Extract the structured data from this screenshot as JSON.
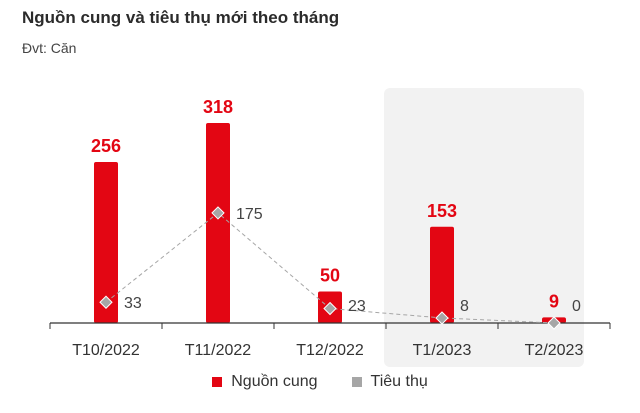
{
  "chart_data": {
    "type": "bar",
    "title": "Nguồn cung và tiêu thụ mới theo tháng",
    "subtitle": "Đvt: Căn",
    "categories": [
      "T10/2022",
      "T11/2022",
      "T12/2022",
      "T1/2023",
      "T2/2023"
    ],
    "series": [
      {
        "name": "Nguồn cung",
        "type": "bar",
        "values": [
          256,
          318,
          50,
          153,
          9
        ],
        "value_labels": [
          "256",
          "318",
          "50",
          "153",
          "9"
        ],
        "color": "#e30613"
      },
      {
        "name": "Tiêu thụ",
        "type": "line",
        "values": [
          33,
          175,
          23,
          8,
          0
        ],
        "value_labels": [
          "33",
          "175",
          "23",
          "8",
          "0"
        ],
        "color": "#a6a6a6"
      }
    ],
    "ylim": [
      0,
      318
    ],
    "grid": false,
    "highlight_categories": [
      "T1/2023",
      "T2/2023"
    ],
    "legend_position": "bottom-center"
  },
  "colors": {
    "bar": "#e30613",
    "line": "#a6a6a6",
    "highlight_band": "#f2f2f2",
    "axis": "#333333"
  }
}
